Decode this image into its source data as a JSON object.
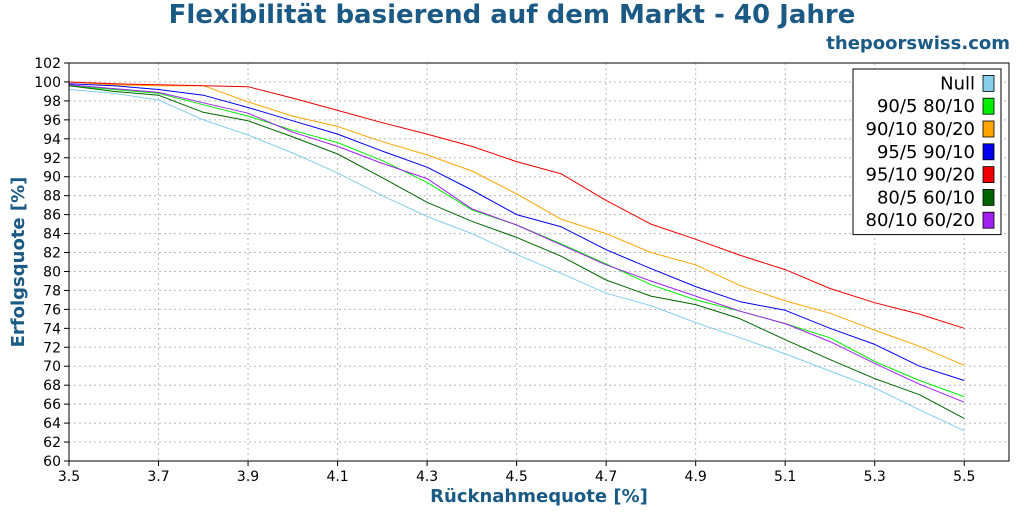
{
  "header": {
    "title": "Flexibilität basierend auf dem Markt - 40 Jahre",
    "site": "thepoorswiss.com"
  },
  "chart_data": {
    "type": "line",
    "title": "Flexibilität basierend auf dem Markt - 40 Jahre",
    "xlabel": "Rücknahmequote [%]",
    "ylabel": "Erfolgsquote [%]",
    "xlim": [
      3.5,
      5.6
    ],
    "ylim": [
      60,
      102
    ],
    "x_ticks": [
      "3.5",
      "3.7",
      "3.9",
      "4.1",
      "4.3",
      "4.5",
      "4.7",
      "4.9",
      "5.1",
      "5.3",
      "5.5"
    ],
    "y_ticks": [
      "60",
      "62",
      "64",
      "66",
      "68",
      "70",
      "72",
      "74",
      "76",
      "78",
      "80",
      "82",
      "84",
      "86",
      "88",
      "90",
      "92",
      "94",
      "96",
      "98",
      "100",
      "102"
    ],
    "grid": true,
    "legend_position": "top-right",
    "x": [
      3.5,
      3.6,
      3.7,
      3.8,
      3.9,
      4.0,
      4.1,
      4.2,
      4.3,
      4.4,
      4.5,
      4.6,
      4.7,
      4.8,
      4.9,
      5.0,
      5.1,
      5.2,
      5.3,
      5.4,
      5.5
    ],
    "series": [
      {
        "name": "Null",
        "color": "#87ceeb",
        "values": [
          99.2,
          98.8,
          98.1,
          96.0,
          94.4,
          92.5,
          90.4,
          88.0,
          85.8,
          84.0,
          81.8,
          79.8,
          77.7,
          76.4,
          74.6,
          73.0,
          71.3,
          69.5,
          67.7,
          65.4,
          63.2
        ]
      },
      {
        "name": "90/5 80/10",
        "color": "#00ee00",
        "values": [
          99.6,
          99.2,
          98.8,
          97.6,
          96.4,
          94.9,
          93.6,
          91.7,
          89.4,
          86.5,
          84.9,
          82.9,
          80.8,
          78.6,
          77.0,
          75.8,
          74.5,
          73.0,
          70.5,
          68.5,
          66.8
        ]
      },
      {
        "name": "90/10 80/20",
        "color": "#ffa500",
        "values": [
          100.0,
          99.7,
          99.6,
          99.6,
          97.9,
          96.4,
          95.3,
          93.7,
          92.3,
          90.6,
          88.2,
          85.5,
          84.0,
          82.0,
          80.7,
          78.5,
          76.9,
          75.6,
          73.8,
          72.1,
          70.1
        ]
      },
      {
        "name": "95/5 90/10",
        "color": "#0000ee",
        "values": [
          99.8,
          99.6,
          99.2,
          98.6,
          97.3,
          95.9,
          94.5,
          92.7,
          91.0,
          88.6,
          86.0,
          84.7,
          82.3,
          80.3,
          78.4,
          76.8,
          75.9,
          74.0,
          72.3,
          70.0,
          68.5
        ]
      },
      {
        "name": "95/10 90/20",
        "color": "#ee0000",
        "values": [
          100.0,
          99.8,
          99.7,
          99.6,
          99.5,
          98.3,
          97.0,
          95.7,
          94.5,
          93.2,
          91.6,
          90.3,
          87.5,
          85.0,
          83.4,
          81.7,
          80.2,
          78.2,
          76.7,
          75.5,
          74.0
        ]
      },
      {
        "name": "80/5 60/10",
        "color": "#006400",
        "values": [
          99.6,
          99.0,
          98.6,
          96.8,
          95.9,
          94.2,
          92.4,
          89.9,
          87.3,
          85.3,
          83.6,
          81.6,
          79.1,
          77.4,
          76.5,
          75.0,
          72.8,
          70.7,
          68.7,
          67.0,
          64.5
        ]
      },
      {
        "name": "80/10 60/20",
        "color": "#a020f0",
        "values": [
          99.7,
          99.3,
          98.9,
          97.8,
          96.7,
          94.7,
          93.2,
          91.4,
          89.8,
          86.6,
          84.9,
          82.8,
          80.7,
          79.0,
          77.4,
          75.8,
          74.5,
          72.6,
          70.3,
          68.1,
          66.2
        ]
      }
    ]
  }
}
